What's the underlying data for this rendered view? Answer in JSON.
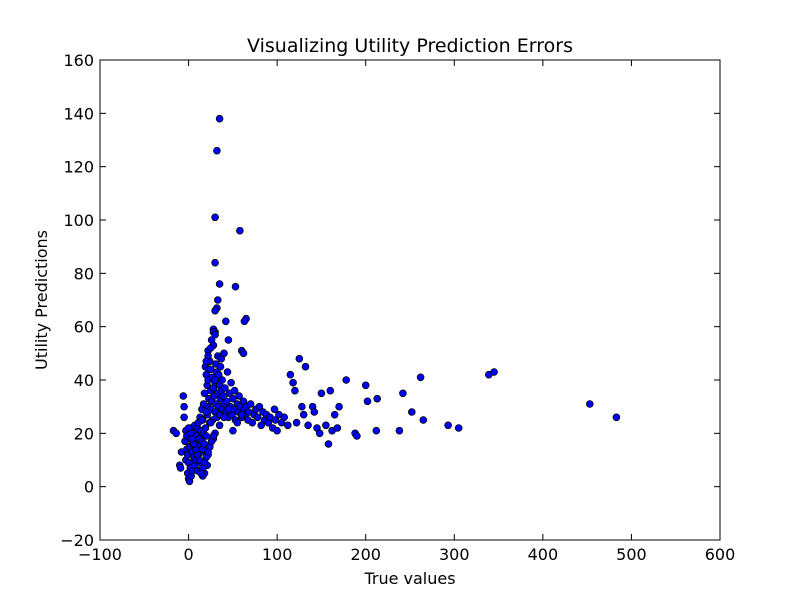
{
  "chart_data": {
    "type": "scatter",
    "title": "Visualizing Utility Prediction Errors",
    "xlabel": "True values",
    "ylabel": "Utility Predictions",
    "xlim": [
      -100,
      600
    ],
    "ylim": [
      -20,
      160
    ],
    "xticks": [
      -100,
      0,
      100,
      200,
      300,
      400,
      500,
      600
    ],
    "yticks": [
      -20,
      0,
      20,
      40,
      60,
      80,
      100,
      120,
      140,
      160
    ],
    "xtick_labels": [
      "−100",
      "0",
      "100",
      "200",
      "300",
      "400",
      "500",
      "600"
    ],
    "ytick_labels": [
      "−20",
      "0",
      "20",
      "40",
      "60",
      "80",
      "100",
      "120",
      "140",
      "160"
    ],
    "grid": false,
    "legend": "none",
    "marker_color": "#0000ff",
    "marker_edge": "#000000",
    "series": [
      {
        "x": [
          -17,
          -14,
          -10,
          -9,
          -8,
          -6,
          -5,
          -5,
          -4,
          -3,
          -3,
          -2,
          -2,
          -1,
          -1,
          0,
          0,
          1,
          1,
          2,
          2,
          3,
          3,
          4,
          4,
          5,
          5,
          6,
          6,
          7,
          7,
          8,
          8,
          9,
          9,
          10,
          10,
          11,
          11,
          12,
          12,
          13,
          13,
          14,
          14,
          15,
          15,
          16,
          16,
          17,
          17,
          18,
          18,
          19,
          19,
          20,
          20,
          21,
          21,
          22,
          22,
          22,
          23,
          23,
          24,
          24,
          25,
          25,
          26,
          26,
          27,
          27,
          28,
          28,
          29,
          29,
          30,
          30,
          31,
          31,
          32,
          32,
          33,
          33,
          34,
          34,
          35,
          35,
          36,
          36,
          37,
          37,
          38,
          38,
          39,
          40,
          40,
          41,
          42,
          43,
          44,
          45,
          46,
          47,
          48,
          49,
          50,
          51,
          52,
          53,
          55,
          56,
          57,
          58,
          60,
          62,
          63,
          64,
          65,
          67,
          68,
          70,
          72,
          74,
          76,
          78,
          80,
          82,
          84,
          86,
          88,
          90,
          92,
          95,
          97,
          98,
          100,
          102,
          105,
          108,
          112,
          115,
          118,
          120,
          122,
          125,
          128,
          130,
          132,
          135,
          140,
          142,
          145,
          148,
          150,
          155,
          158,
          160,
          162,
          165,
          168,
          170,
          178,
          188,
          190,
          200,
          202,
          212,
          213,
          238,
          242,
          252,
          265,
          262,
          293,
          305,
          339,
          345,
          453,
          483,
          35,
          32,
          30,
          58,
          30,
          35,
          53,
          33,
          32,
          30,
          28,
          42,
          30,
          65,
          63,
          45,
          60,
          62,
          28,
          30,
          25,
          22,
          20,
          25,
          27,
          30,
          22,
          28,
          24,
          21,
          18,
          16,
          14,
          12,
          10,
          8,
          6,
          4,
          2,
          0,
          15,
          20,
          25,
          30,
          35,
          40,
          45,
          50,
          55,
          60,
          20,
          18,
          16,
          14,
          22,
          24,
          26,
          28
        ],
        "y": [
          21,
          20,
          8,
          7,
          13,
          34,
          26,
          30,
          17,
          10,
          21,
          14,
          19,
          5,
          12,
          3,
          9,
          2,
          15,
          7,
          18,
          4,
          22,
          6,
          13,
          16,
          9,
          20,
          11,
          23,
          8,
          14,
          17,
          19,
          10,
          22,
          6,
          12,
          24,
          15,
          18,
          9,
          26,
          21,
          13,
          17,
          29,
          14,
          25,
          20,
          31,
          16,
          35,
          22,
          45,
          42,
          19,
          38,
          27,
          40,
          30,
          51,
          33,
          44,
          24,
          47,
          36,
          29,
          32,
          55,
          41,
          25,
          37,
          53,
          34,
          58,
          39,
          28,
          46,
          31,
          43,
          26,
          49,
          35,
          42,
          30,
          38,
          27,
          45,
          33,
          36,
          48,
          29,
          40,
          34,
          31,
          50,
          37,
          28,
          32,
          43,
          26,
          35,
          30,
          39,
          27,
          33,
          29,
          36,
          25,
          31,
          28,
          34,
          30,
          26,
          32,
          29,
          27,
          30,
          25,
          28,
          31,
          24,
          27,
          29,
          26,
          30,
          23,
          28,
          25,
          27,
          24,
          26,
          22,
          29,
          25,
          21,
          27,
          24,
          26,
          23,
          42,
          39,
          36,
          24,
          48,
          30,
          27,
          45,
          23,
          30,
          28,
          22,
          20,
          35,
          23,
          16,
          36,
          21,
          27,
          22,
          30,
          40,
          20,
          19,
          38,
          32,
          21,
          33,
          21,
          35,
          28,
          25,
          41,
          23,
          22,
          42,
          43,
          31,
          26,
          138,
          126,
          101,
          96,
          84,
          76,
          75,
          70,
          67,
          66,
          59,
          62,
          58,
          63,
          62,
          55,
          51,
          50,
          58,
          57,
          52,
          49,
          47,
          44,
          41,
          40,
          12,
          18,
          15,
          8,
          5,
          4,
          6,
          10,
          12,
          14,
          16,
          18,
          20,
          22,
          25,
          28,
          24,
          20,
          23,
          26,
          29,
          21,
          24,
          27,
          11,
          9,
          7,
          5,
          13,
          15,
          17,
          19
        ]
      }
    ]
  }
}
